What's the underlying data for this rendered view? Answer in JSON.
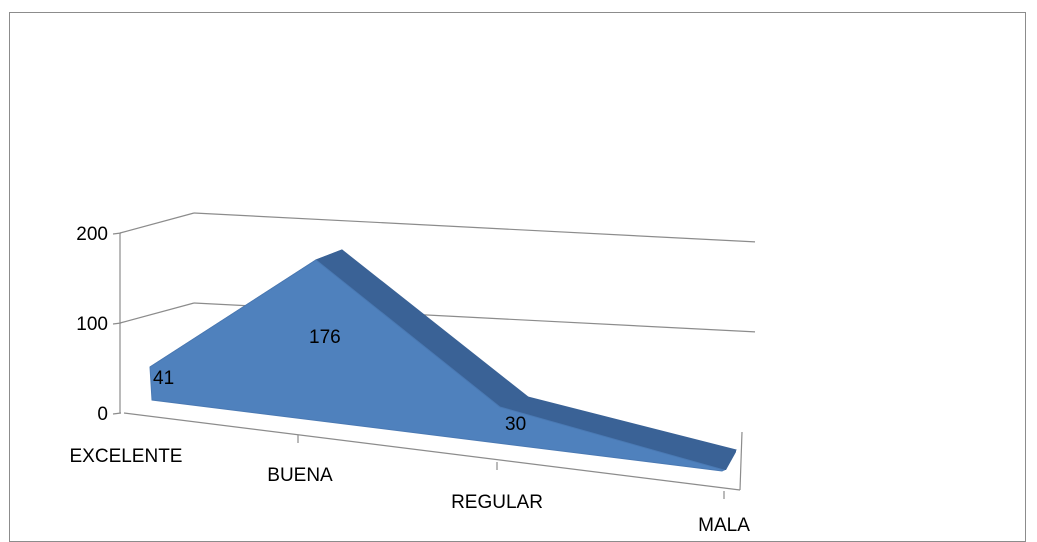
{
  "chart_data": {
    "type": "area",
    "style": "3d",
    "categories": [
      "EXCELENTE",
      "BUENA",
      "REGULAR",
      "MALA"
    ],
    "values": [
      41,
      176,
      30,
      0
    ],
    "data_labels": [
      "41",
      "176",
      "30",
      ""
    ],
    "y_ticks": [
      "0",
      "100",
      "200"
    ],
    "ylim": [
      0,
      200
    ],
    "grid": true,
    "legend": "none",
    "title": "",
    "xlabel": "",
    "ylabel": "",
    "colors": {
      "front": "#4f81bd",
      "side": "#3a6296",
      "gridline": "#8c8c8c",
      "frame": "#8c8c8c"
    }
  }
}
